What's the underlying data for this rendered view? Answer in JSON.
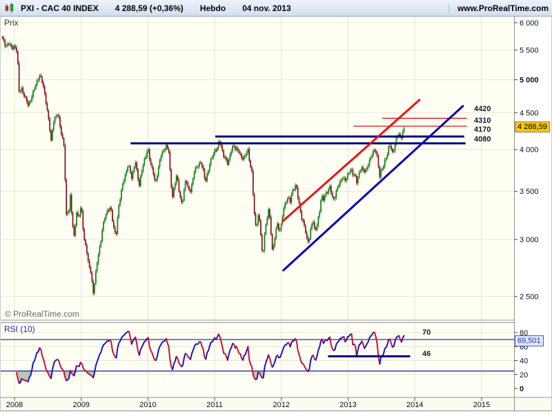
{
  "header": {
    "symbol": "PXI - CAC 40 INDEX",
    "quote": "4 288,59 (+0,36%)",
    "period": "Hebdo",
    "date": "04 nov. 2013",
    "site": "www.ProRealTime.com"
  },
  "copyright": "© ProRealTime.com",
  "x_axis": {
    "labels": [
      "2008",
      "2009",
      "2010",
      "2011",
      "2012",
      "2013",
      "2014",
      "2015"
    ],
    "values": [
      2008,
      2009,
      2010,
      2011,
      2012,
      2013,
      2014,
      2015
    ]
  },
  "colors": {
    "panel_bg": "#fffff4",
    "grid": "#e4e4d8",
    "frame": "#909090",
    "up": "#0e7d12",
    "down": "#7c1113",
    "trend_red": "#ee1111",
    "trend_blue": "#0000b4",
    "navy": "#00007d",
    "thin_red": "#dd1111",
    "rsi_up": "#1515cc",
    "rsi_down": "#cc1133",
    "rsi_zone_line": "#2b2bb4",
    "rsi_fill": "#b7c8b4",
    "badge_yellow": "#f3c513",
    "badge_blue_bg": "#dfe7f6"
  },
  "chart_data": [
    {
      "type": "candlestick",
      "title": "PXI - CAC 40 INDEX",
      "timeframe_label": "Hebdo",
      "last_date": "04 nov. 2013",
      "last_price": 4288.59,
      "last_price_label": "4 288,59",
      "change_label": "+0,36%",
      "ylabel": "Prix",
      "y_scale": "log",
      "x_range": [
        2007.82,
        2015.85
      ],
      "y_ticks": [
        {
          "value": 6000,
          "label": "6 000",
          "bold": false
        },
        {
          "value": 5500,
          "label": "5 500",
          "bold": false
        },
        {
          "value": 5000,
          "label": "5 000",
          "bold": true
        },
        {
          "value": 4500,
          "label": "4 500",
          "bold": false
        },
        {
          "value": 4000,
          "label": "4 000",
          "bold": false
        },
        {
          "value": 3500,
          "label": "3 500",
          "bold": false
        },
        {
          "value": 3000,
          "label": "3 000",
          "bold": false
        },
        {
          "value": 2500,
          "label": "2 500",
          "bold": false
        }
      ],
      "levels": [
        {
          "label": "4420",
          "value": 4420,
          "x_from": 2013.51,
          "x_to": 2014.78,
          "color": "#dd1111",
          "width": 1.3
        },
        {
          "label": "4310",
          "value": 4310,
          "x_from": 2013.08,
          "x_to": 2014.78,
          "color": "#dd1111",
          "width": 1.3
        },
        {
          "label": "4170",
          "value": 4170,
          "x_from": 2011.01,
          "x_to": 2014.74,
          "color": "#00007d",
          "width": 3
        },
        {
          "label": "4080",
          "value": 4080,
          "x_from": 2009.74,
          "x_to": 2014.76,
          "color": "#00007d",
          "width": 3
        }
      ],
      "trendlines": [
        {
          "color": "#ee1111",
          "width": 3,
          "from": [
            2012.02,
            3180
          ],
          "to": [
            2014.07,
            4688
          ]
        },
        {
          "color": "#0000b4",
          "width": 3,
          "from": [
            2012.03,
            2718
          ],
          "to": [
            2014.72,
            4596
          ]
        }
      ],
      "weekly_close_anchors": [
        [
          2007.82,
          5700
        ],
        [
          2007.87,
          5560
        ],
        [
          2007.92,
          5640
        ],
        [
          2007.96,
          5530
        ],
        [
          2008.0,
          5550
        ],
        [
          2008.04,
          5470
        ],
        [
          2008.07,
          4790
        ],
        [
          2008.1,
          4880
        ],
        [
          2008.14,
          4770
        ],
        [
          2008.18,
          4680
        ],
        [
          2008.21,
          4590
        ],
        [
          2008.25,
          4700
        ],
        [
          2008.3,
          4880
        ],
        [
          2008.35,
          5010
        ],
        [
          2008.38,
          5080
        ],
        [
          2008.42,
          4950
        ],
        [
          2008.45,
          4780
        ],
        [
          2008.49,
          4530
        ],
        [
          2008.52,
          4350
        ],
        [
          2008.55,
          4100
        ],
        [
          2008.58,
          4370
        ],
        [
          2008.62,
          4440
        ],
        [
          2008.65,
          4480
        ],
        [
          2008.68,
          4320
        ],
        [
          2008.71,
          4170
        ],
        [
          2008.75,
          4030
        ],
        [
          2008.77,
          3180
        ],
        [
          2008.79,
          3330
        ],
        [
          2008.81,
          3200
        ],
        [
          2008.83,
          3490
        ],
        [
          2008.86,
          3230
        ],
        [
          2008.89,
          3000
        ],
        [
          2008.93,
          3270
        ],
        [
          2008.96,
          3220
        ],
        [
          2009.0,
          3350
        ],
        [
          2009.04,
          3000
        ],
        [
          2009.08,
          2900
        ],
        [
          2009.11,
          2760
        ],
        [
          2009.14,
          2720
        ],
        [
          2009.18,
          2530
        ],
        [
          2009.21,
          2660
        ],
        [
          2009.25,
          2840
        ],
        [
          2009.29,
          2950
        ],
        [
          2009.32,
          3120
        ],
        [
          2009.36,
          3240
        ],
        [
          2009.4,
          3300
        ],
        [
          2009.44,
          3330
        ],
        [
          2009.48,
          3130
        ],
        [
          2009.52,
          3020
        ],
        [
          2009.56,
          3330
        ],
        [
          2009.6,
          3500
        ],
        [
          2009.63,
          3620
        ],
        [
          2009.67,
          3700
        ],
        [
          2009.7,
          3800
        ],
        [
          2009.73,
          3740
        ],
        [
          2009.76,
          3640
        ],
        [
          2009.81,
          3870
        ],
        [
          2009.84,
          3700
        ],
        [
          2009.87,
          3560
        ],
        [
          2009.9,
          3710
        ],
        [
          2009.94,
          3840
        ],
        [
          2010.0,
          4020
        ],
        [
          2010.04,
          3820
        ],
        [
          2010.08,
          3720
        ],
        [
          2010.11,
          3570
        ],
        [
          2010.15,
          3730
        ],
        [
          2010.19,
          3920
        ],
        [
          2010.23,
          3990
        ],
        [
          2010.27,
          4050
        ],
        [
          2010.31,
          3990
        ],
        [
          2010.34,
          3610
        ],
        [
          2010.37,
          3430
        ],
        [
          2010.4,
          3570
        ],
        [
          2010.43,
          3700
        ],
        [
          2010.47,
          3490
        ],
        [
          2010.51,
          3340
        ],
        [
          2010.54,
          3500
        ],
        [
          2010.57,
          3640
        ],
        [
          2010.6,
          3540
        ],
        [
          2010.63,
          3490
        ],
        [
          2010.67,
          3620
        ],
        [
          2010.7,
          3760
        ],
        [
          2010.74,
          3780
        ],
        [
          2010.79,
          3830
        ],
        [
          2010.82,
          3780
        ],
        [
          2010.86,
          3610
        ],
        [
          2010.9,
          3730
        ],
        [
          2010.94,
          3860
        ],
        [
          2011.0,
          3970
        ],
        [
          2011.04,
          4020
        ],
        [
          2011.07,
          4140
        ],
        [
          2011.1,
          4030
        ],
        [
          2011.13,
          3930
        ],
        [
          2011.16,
          3880
        ],
        [
          2011.2,
          3810
        ],
        [
          2011.24,
          3970
        ],
        [
          2011.28,
          4060
        ],
        [
          2011.31,
          4020
        ],
        [
          2011.35,
          3990
        ],
        [
          2011.39,
          3910
        ],
        [
          2011.43,
          3870
        ],
        [
          2011.47,
          3960
        ],
        [
          2011.5,
          4000
        ],
        [
          2011.53,
          3810
        ],
        [
          2011.56,
          3710
        ],
        [
          2011.59,
          3280
        ],
        [
          2011.62,
          3090
        ],
        [
          2011.65,
          3240
        ],
        [
          2011.68,
          3160
        ],
        [
          2011.7,
          2980
        ],
        [
          2011.72,
          2810
        ],
        [
          2011.75,
          3080
        ],
        [
          2011.78,
          3170
        ],
        [
          2011.81,
          3330
        ],
        [
          2011.84,
          3080
        ],
        [
          2011.87,
          2870
        ],
        [
          2011.9,
          3010
        ],
        [
          2011.93,
          3170
        ],
        [
          2011.97,
          3080
        ],
        [
          2012.0,
          3140
        ],
        [
          2012.03,
          3300
        ],
        [
          2012.07,
          3380
        ],
        [
          2012.1,
          3440
        ],
        [
          2012.13,
          3390
        ],
        [
          2012.16,
          3500
        ],
        [
          2012.19,
          3530
        ],
        [
          2012.22,
          3570
        ],
        [
          2012.25,
          3420
        ],
        [
          2012.28,
          3290
        ],
        [
          2012.31,
          3200
        ],
        [
          2012.35,
          3130
        ],
        [
          2012.38,
          3010
        ],
        [
          2012.41,
          2970
        ],
        [
          2012.44,
          3090
        ],
        [
          2012.47,
          3200
        ],
        [
          2012.5,
          3080
        ],
        [
          2012.53,
          3130
        ],
        [
          2012.57,
          3280
        ],
        [
          2012.6,
          3450
        ],
        [
          2012.63,
          3410
        ],
        [
          2012.66,
          3460
        ],
        [
          2012.7,
          3500
        ],
        [
          2012.73,
          3560
        ],
        [
          2012.76,
          3440
        ],
        [
          2012.79,
          3410
        ],
        [
          2012.82,
          3490
        ],
        [
          2012.85,
          3560
        ],
        [
          2012.89,
          3610
        ],
        [
          2012.92,
          3660
        ],
        [
          2012.95,
          3620
        ],
        [
          2013.0,
          3700
        ],
        [
          2013.04,
          3760
        ],
        [
          2013.07,
          3690
        ],
        [
          2013.1,
          3680
        ],
        [
          2013.13,
          3600
        ],
        [
          2013.16,
          3700
        ],
        [
          2013.2,
          3790
        ],
        [
          2013.23,
          3740
        ],
        [
          2013.27,
          3730
        ],
        [
          2013.3,
          3810
        ],
        [
          2013.33,
          3870
        ],
        [
          2013.36,
          3950
        ],
        [
          2013.39,
          4000
        ],
        [
          2013.42,
          3980
        ],
        [
          2013.45,
          3830
        ],
        [
          2013.47,
          3660
        ],
        [
          2013.5,
          3740
        ],
        [
          2013.53,
          3790
        ],
        [
          2013.56,
          3880
        ],
        [
          2013.59,
          3950
        ],
        [
          2013.62,
          4090
        ],
        [
          2013.65,
          4000
        ],
        [
          2013.67,
          3940
        ],
        [
          2013.7,
          4050
        ],
        [
          2013.73,
          4160
        ],
        [
          2013.75,
          4210
        ],
        [
          2013.77,
          4180
        ],
        [
          2013.79,
          4150
        ],
        [
          2013.81,
          4200
        ],
        [
          2013.83,
          4260
        ],
        [
          2013.845,
          4288.59
        ]
      ]
    },
    {
      "type": "line",
      "title": "RSI (10)",
      "period_param": 10,
      "last_value": 69.501,
      "last_value_label": "69,501",
      "overbought_label": "70",
      "support_label": "46",
      "y_ticks": [
        {
          "value": 80,
          "label": "80",
          "bold": false
        },
        {
          "value": 60,
          "label": "60",
          "bold": false
        },
        {
          "value": 40,
          "label": "40",
          "bold": false
        },
        {
          "value": 20,
          "label": "20",
          "bold": false
        },
        {
          "value": 0,
          "label": "0",
          "bold": true
        }
      ],
      "hlines": [
        {
          "value": 70
        },
        {
          "value": 25
        }
      ],
      "oversold_fill_below": 25,
      "support_segment": {
        "value": 46,
        "x_from": 2012.7,
        "x_to": 2013.93
      }
    }
  ]
}
